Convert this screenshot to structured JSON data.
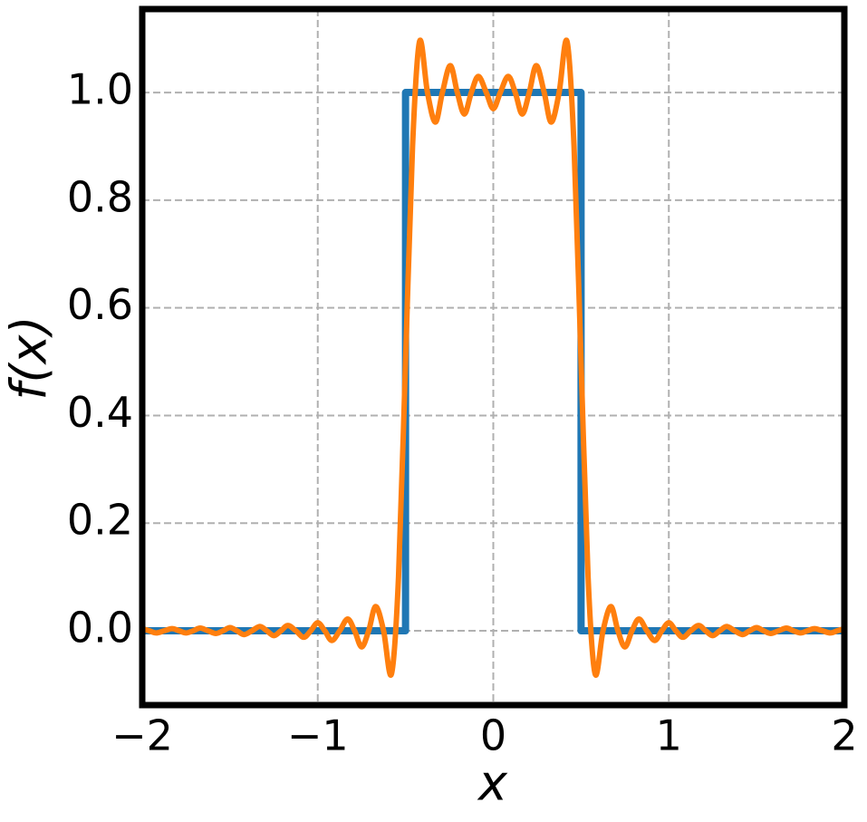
{
  "chart_data": {
    "type": "line",
    "xlabel": "x",
    "ylabel": "f(x)",
    "xlim": [
      -2,
      2
    ],
    "ylim": [
      -0.138,
      1.155
    ],
    "xticks": [
      {
        "value": -2,
        "label": "−2"
      },
      {
        "value": -1,
        "label": "−1"
      },
      0,
      1,
      2
    ],
    "yticks": [
      {
        "value": 0,
        "label": "0.0"
      },
      0.2,
      0.4,
      0.6,
      0.8,
      {
        "value": 1,
        "label": "1.0"
      }
    ],
    "grid": true,
    "series": [
      {
        "color": "#1f77b4",
        "x": [
          -2,
          -0.5,
          -0.5,
          0.5,
          0.5,
          2
        ],
        "values": [
          0,
          0,
          1,
          1,
          0,
          0
        ]
      },
      {
        "color": "#ff7f0e",
        "x": [
          -2.0,
          -1.96,
          -1.92,
          -1.875,
          -1.83,
          -1.79,
          -1.75,
          -1.71,
          -1.67,
          -1.625,
          -1.58,
          -1.54,
          -1.5,
          -1.46,
          -1.42,
          -1.375,
          -1.33,
          -1.29,
          -1.25,
          -1.21,
          -1.17,
          -1.125,
          -1.08,
          -1.04,
          -1.0,
          -0.96,
          -0.92,
          -0.875,
          -0.83,
          -0.79,
          -0.75,
          -0.71,
          -0.67,
          -0.625,
          -0.58,
          -0.54,
          -0.5,
          -0.46,
          -0.42,
          -0.375,
          -0.33,
          -0.29,
          -0.245,
          -0.205,
          -0.165,
          -0.125,
          -0.085,
          -0.04,
          0,
          0.04,
          0.085,
          0.125,
          0.165,
          0.205,
          0.245,
          0.29,
          0.33,
          0.375,
          0.42,
          0.46,
          0.5,
          0.54,
          0.58,
          0.625,
          0.67,
          0.71,
          0.75,
          0.79,
          0.83,
          0.875,
          0.92,
          0.96,
          1.0,
          1.04,
          1.08,
          1.125,
          1.17,
          1.21,
          1.25,
          1.29,
          1.33,
          1.375,
          1.42,
          1.46,
          1.5,
          1.54,
          1.58,
          1.625,
          1.67,
          1.71,
          1.75,
          1.79,
          1.83,
          1.875,
          1.92,
          1.96,
          2.0
        ],
        "values": [
          0.004,
          0,
          -0.004,
          0,
          0.004,
          0,
          -0.004,
          0,
          0.005,
          0,
          -0.005,
          0,
          0.006,
          0,
          -0.007,
          0,
          0.008,
          0,
          -0.009,
          0,
          0.01,
          0,
          -0.012,
          0,
          0.015,
          0,
          -0.018,
          0,
          0.022,
          0,
          -0.03,
          0,
          0.045,
          0,
          -0.08,
          0.1,
          0.5,
          0.9,
          1.095,
          1.0,
          0.945,
          1.0,
          1.05,
          1.0,
          0.96,
          1.0,
          1.03,
          1.0,
          0.97,
          1.0,
          1.03,
          1.0,
          0.96,
          1.0,
          1.05,
          1.0,
          0.945,
          1.0,
          1.095,
          0.9,
          0.5,
          0.1,
          -0.08,
          0,
          0.045,
          0,
          -0.03,
          0,
          0.022,
          0,
          -0.018,
          0,
          0.015,
          0,
          -0.012,
          0,
          0.01,
          0,
          -0.009,
          0,
          0.008,
          0,
          -0.007,
          0,
          0.006,
          0,
          -0.005,
          0,
          0.005,
          0,
          -0.004,
          0,
          0.004,
          0,
          -0.004,
          0,
          0.004
        ]
      }
    ]
  }
}
